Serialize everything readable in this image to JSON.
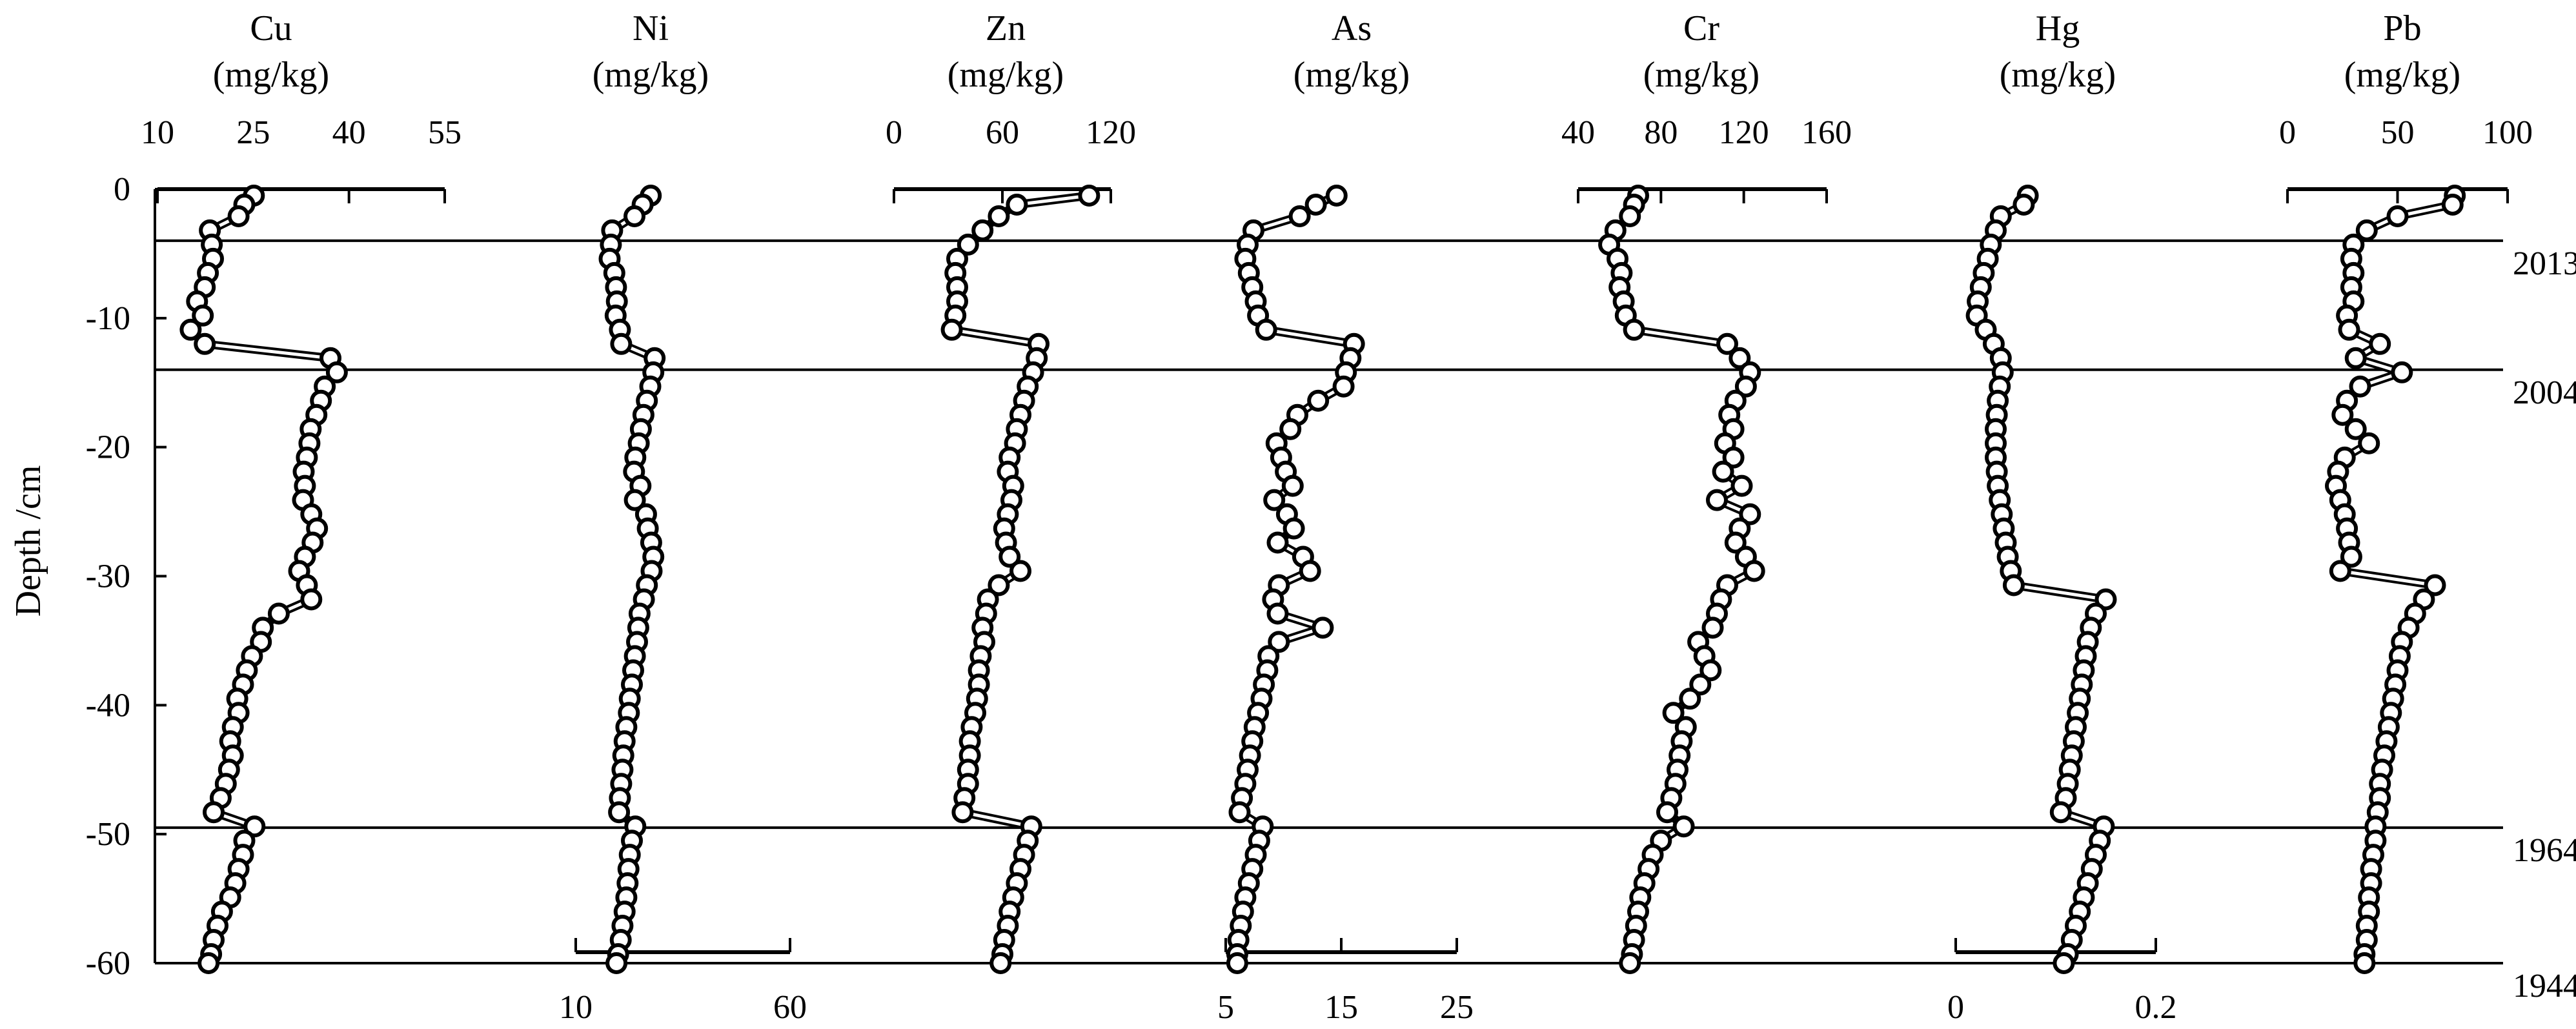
{
  "chart_data": {
    "type": "scatter",
    "ylabel": "Depth /cm",
    "y_ticks": [
      "0",
      "-10",
      "-20",
      "-30",
      "-40",
      "-50",
      "-60"
    ],
    "ylim": [
      -60,
      0
    ],
    "markers": "open circles connected by lines",
    "reference_lines": [
      {
        "depth": -4,
        "label": "2013"
      },
      {
        "depth": -14,
        "label": "2004"
      },
      {
        "depth": -49.5,
        "label": "1964"
      },
      {
        "depth": -60,
        "label": "1944"
      }
    ],
    "panels": [
      {
        "element": "Cu",
        "unit": "(mg/kg)",
        "axis_side": "top",
        "ticks": [
          "10",
          "25",
          "40",
          "55"
        ],
        "xlim": [
          10,
          55
        ],
        "depth": [
          -0.5,
          -1.2,
          -2.1,
          -3.2,
          -4.3,
          -5.4,
          -6.5,
          -7.6,
          -8.7,
          -9.8,
          -10.9,
          -12,
          -13.1,
          -14.2,
          -15.3,
          -16.4,
          -17.5,
          -18.6,
          -19.7,
          -20.8,
          -21.9,
          -23,
          -24.1,
          -25.2,
          -26.3,
          -27.4,
          -28.5,
          -29.6,
          -30.7,
          -31.8,
          -32.9,
          -34,
          -35.1,
          -36.2,
          -37.3,
          -38.4,
          -39.5,
          -40.6,
          -41.7,
          -42.8,
          -43.9,
          -45,
          -46.1,
          -47.2,
          -48.3,
          -49.4,
          -50.5,
          -51.6,
          -52.7,
          -53.8,
          -54.9,
          -56,
          -57.1,
          -58.2,
          -59.3,
          -60
        ],
        "values": [
          25.1,
          23.6,
          22.7,
          18.2,
          18.5,
          18.7,
          17.9,
          17.4,
          16.2,
          17.1,
          15.2,
          17.4,
          37.1,
          38.1,
          36.2,
          35.6,
          34.9,
          34.0,
          33.8,
          33.4,
          32.9,
          33.1,
          32.8,
          34.1,
          35.0,
          34.3,
          33.1,
          32.2,
          33.4,
          34.1,
          29.0,
          26.5,
          26.2,
          24.8,
          24.0,
          23.4,
          22.5,
          22.7,
          21.8,
          21.4,
          21.8,
          21.2,
          20.7,
          19.9,
          18.8,
          25.2,
          23.6,
          23.4,
          22.7,
          22.2,
          21.4,
          20.1,
          19.4,
          18.8,
          18.4,
          18.0
        ]
      },
      {
        "element": "Ni",
        "unit": "(mg/kg)",
        "axis_side": "bottom",
        "ticks": [
          "10",
          "60"
        ],
        "xlim": [
          10,
          60
        ],
        "depth": [
          -0.5,
          -1.2,
          -2.1,
          -3.2,
          -4.3,
          -5.4,
          -6.5,
          -7.6,
          -8.7,
          -9.8,
          -10.9,
          -12,
          -13.1,
          -14.2,
          -15.3,
          -16.4,
          -17.5,
          -18.6,
          -19.7,
          -20.8,
          -21.9,
          -23,
          -24.1,
          -25.2,
          -26.3,
          -27.4,
          -28.5,
          -29.6,
          -30.7,
          -31.8,
          -32.9,
          -34,
          -35.1,
          -36.2,
          -37.3,
          -38.4,
          -39.5,
          -40.6,
          -41.7,
          -42.8,
          -43.9,
          -45,
          -46.1,
          -47.2,
          -48.3,
          -49.4,
          -50.5,
          -51.6,
          -52.7,
          -53.8,
          -54.9,
          -56,
          -57.1,
          -58.2,
          -59.3,
          -60
        ],
        "values": [
          27.5,
          25.6,
          23.7,
          18.5,
          18.2,
          17.9,
          19.0,
          19.4,
          19.6,
          19.3,
          20.3,
          20.6,
          28.4,
          28.1,
          27.4,
          26.6,
          25.8,
          25.2,
          24.7,
          23.9,
          23.6,
          25.1,
          23.8,
          26.4,
          26.8,
          27.6,
          28.1,
          27.7,
          26.6,
          25.9,
          24.9,
          24.6,
          24.3,
          23.8,
          23.4,
          23.1,
          22.6,
          22.4,
          21.8,
          21.4,
          21.1,
          20.9,
          20.6,
          20.3,
          20.1,
          23.9,
          23.1,
          22.6,
          22.3,
          22.1,
          21.8,
          21.4,
          20.9,
          20.5,
          19.9,
          19.5
        ]
      },
      {
        "element": "Zn",
        "unit": "(mg/kg)",
        "axis_side": "top",
        "ticks": [
          "0",
          "60",
          "120"
        ],
        "xlim": [
          0,
          120
        ],
        "depth": [
          -0.5,
          -1.2,
          -2.1,
          -3.2,
          -4.3,
          -5.4,
          -6.5,
          -7.6,
          -8.7,
          -9.8,
          -10.9,
          -12,
          -13.1,
          -14.2,
          -15.3,
          -16.4,
          -17.5,
          -18.6,
          -19.7,
          -20.8,
          -21.9,
          -23,
          -24.1,
          -25.2,
          -26.3,
          -27.4,
          -28.5,
          -29.6,
          -30.7,
          -31.8,
          -32.9,
          -34,
          -35.1,
          -36.2,
          -37.3,
          -38.4,
          -39.5,
          -40.6,
          -41.7,
          -42.8,
          -43.9,
          -45,
          -46.1,
          -47.2,
          -48.3,
          -49.4,
          -50.5,
          -51.6,
          -52.7,
          -53.8,
          -54.9,
          -56,
          -57.1,
          -58.2,
          -59.3,
          -60
        ],
        "values": [
          108,
          68,
          58,
          49,
          41,
          35,
          34,
          35,
          35,
          34,
          32,
          80,
          79,
          77,
          74,
          72,
          70,
          68,
          67,
          64,
          63,
          66,
          65,
          63,
          61,
          62,
          64,
          70,
          58,
          52,
          51,
          49,
          50,
          48,
          47,
          47,
          46,
          45,
          43,
          42,
          42,
          41,
          41,
          39,
          38,
          76,
          74,
          72,
          70,
          68,
          66,
          64,
          63,
          61,
          60,
          59
        ]
      },
      {
        "element": "As",
        "unit": "(mg/kg)",
        "axis_side": "bottom",
        "ticks": [
          "5",
          "15",
          "25"
        ],
        "xlim": [
          5,
          25
        ],
        "depth": [
          -0.5,
          -1.2,
          -2.1,
          -3.2,
          -4.3,
          -5.4,
          -6.5,
          -7.6,
          -8.7,
          -9.8,
          -10.9,
          -12,
          -13.1,
          -14.2,
          -15.3,
          -16.4,
          -17.5,
          -18.6,
          -19.7,
          -20.8,
          -21.9,
          -23,
          -24.1,
          -25.2,
          -26.3,
          -27.4,
          -28.5,
          -29.6,
          -30.7,
          -31.8,
          -32.9,
          -34,
          -35.1,
          -36.2,
          -37.3,
          -38.4,
          -39.5,
          -40.6,
          -41.7,
          -42.8,
          -43.9,
          -45,
          -46.1,
          -47.2,
          -48.3,
          -49.4,
          -50.5,
          -51.6,
          -52.7,
          -53.8,
          -54.9,
          -56,
          -57.1,
          -58.2,
          -59.3,
          -60
        ],
        "values": [
          14.6,
          12.8,
          11.4,
          7.4,
          6.9,
          6.7,
          7.0,
          7.3,
          7.6,
          7.8,
          8.5,
          16.1,
          15.8,
          15.4,
          15.2,
          13.0,
          11.2,
          10.6,
          9.4,
          9.8,
          10.2,
          10.8,
          9.2,
          10.3,
          10.9,
          9.5,
          11.7,
          12.3,
          9.6,
          9.1,
          9.5,
          13.4,
          9.6,
          8.7,
          8.6,
          8.3,
          8.1,
          7.8,
          7.5,
          7.3,
          7.1,
          6.9,
          6.7,
          6.4,
          6.2,
          8.2,
          7.9,
          7.6,
          7.3,
          7.0,
          6.7,
          6.5,
          6.3,
          6.1,
          6.0,
          6.0
        ]
      },
      {
        "element": "Cr",
        "unit": "(mg/kg)",
        "axis_side": "top",
        "ticks": [
          "40",
          "80",
          "120",
          "160"
        ],
        "xlim": [
          40,
          160
        ],
        "depth": [
          -0.5,
          -1.2,
          -2.1,
          -3.2,
          -4.3,
          -5.4,
          -6.5,
          -7.6,
          -8.7,
          -9.8,
          -10.9,
          -12,
          -13.1,
          -14.2,
          -15.3,
          -16.4,
          -17.5,
          -18.6,
          -19.7,
          -20.8,
          -21.9,
          -23,
          -24.1,
          -25.2,
          -26.3,
          -27.4,
          -28.5,
          -29.6,
          -30.7,
          -31.8,
          -32.9,
          -34,
          -35.1,
          -36.2,
          -37.3,
          -38.4,
          -39.5,
          -40.6,
          -41.7,
          -42.8,
          -43.9,
          -45,
          -46.1,
          -47.2,
          -48.3,
          -49.4,
          -50.5,
          -51.6,
          -52.7,
          -53.8,
          -54.9,
          -56,
          -57.1,
          -58.2,
          -59.3,
          -60
        ],
        "values": [
          69,
          67,
          65,
          58,
          55,
          59,
          61,
          60,
          62,
          63,
          67,
          112,
          118,
          123,
          121,
          116,
          113,
          115,
          111,
          115,
          110,
          119,
          107,
          123,
          118,
          116,
          121,
          125,
          112,
          109,
          107,
          105,
          98,
          101,
          104,
          99,
          94,
          86,
          92,
          90,
          89,
          88,
          87,
          85,
          83,
          91,
          80,
          76,
          74,
          72,
          70,
          69,
          68,
          67,
          66,
          65
        ]
      },
      {
        "element": "Hg",
        "unit": "(mg/kg)",
        "axis_side": "bottom",
        "ticks": [
          "0",
          "0.2"
        ],
        "xlim": [
          0,
          0.2
        ],
        "depth": [
          -0.5,
          -1.2,
          -2.1,
          -3.2,
          -4.3,
          -5.4,
          -6.5,
          -7.6,
          -8.7,
          -9.8,
          -10.9,
          -12,
          -13.1,
          -14.2,
          -15.3,
          -16.4,
          -17.5,
          -18.6,
          -19.7,
          -20.8,
          -21.9,
          -23,
          -24.1,
          -25.2,
          -26.3,
          -27.4,
          -28.5,
          -29.6,
          -30.7,
          -31.8,
          -32.9,
          -34,
          -35.1,
          -36.2,
          -37.3,
          -38.4,
          -39.5,
          -40.6,
          -41.7,
          -42.8,
          -43.9,
          -45,
          -46.1,
          -47.2,
          -48.3,
          -49.4,
          -50.5,
          -51.6,
          -52.7,
          -53.8,
          -54.9,
          -56,
          -57.1,
          -58.2,
          -59.3,
          -60
        ],
        "values": [
          0.072,
          0.068,
          0.045,
          0.04,
          0.035,
          0.032,
          0.028,
          0.025,
          0.022,
          0.021,
          0.03,
          0.038,
          0.045,
          0.047,
          0.044,
          0.042,
          0.041,
          0.04,
          0.04,
          0.04,
          0.041,
          0.042,
          0.044,
          0.046,
          0.048,
          0.05,
          0.052,
          0.055,
          0.058,
          0.15,
          0.14,
          0.135,
          0.132,
          0.13,
          0.128,
          0.126,
          0.124,
          0.122,
          0.12,
          0.118,
          0.116,
          0.114,
          0.112,
          0.11,
          0.105,
          0.148,
          0.144,
          0.14,
          0.136,
          0.132,
          0.128,
          0.124,
          0.12,
          0.116,
          0.112,
          0.108
        ]
      },
      {
        "element": "Pb",
        "unit": "(mg/kg)",
        "axis_side": "top",
        "ticks": [
          "0",
          "50",
          "100"
        ],
        "xlim": [
          0,
          100
        ],
        "depth": [
          -0.5,
          -1.2,
          -2.1,
          -3.2,
          -4.3,
          -5.4,
          -6.5,
          -7.6,
          -8.7,
          -9.8,
          -10.9,
          -12,
          -13.1,
          -14.2,
          -15.3,
          -16.4,
          -17.5,
          -18.6,
          -19.7,
          -20.8,
          -21.9,
          -23,
          -24.1,
          -25.2,
          -26.3,
          -27.4,
          -28.5,
          -29.6,
          -30.7,
          -31.8,
          -32.9,
          -34,
          -35.1,
          -36.2,
          -37.3,
          -38.4,
          -39.5,
          -40.6,
          -41.7,
          -42.8,
          -43.9,
          -45,
          -46.1,
          -47.2,
          -48.3,
          -49.4,
          -50.5,
          -51.6,
          -52.7,
          -53.8,
          -54.9,
          -56,
          -57.1,
          -58.2,
          -59.3,
          -60
        ],
        "values": [
          76,
          75,
          50,
          36,
          30,
          29,
          30,
          29,
          30,
          27,
          28,
          42,
          31,
          52,
          33,
          27,
          25,
          31,
          37,
          26,
          23,
          22,
          24,
          26,
          27,
          28,
          29,
          24,
          67,
          62,
          58,
          55,
          52,
          51,
          50,
          49,
          48,
          47,
          46,
          45,
          44,
          43,
          42,
          42,
          41,
          40,
          40,
          39,
          38,
          38,
          37,
          37,
          36,
          36,
          35,
          35
        ]
      }
    ]
  }
}
